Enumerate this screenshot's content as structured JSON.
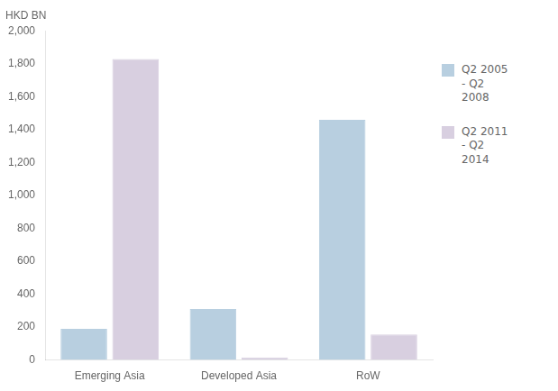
{
  "chart_data": {
    "type": "bar",
    "ylabel": "HKD BN",
    "categories": [
      "Emerging Asia",
      "Developed Asia",
      "RoW"
    ],
    "series": [
      {
        "name": "Q2 2005\n- Q2\n2008",
        "color": "#b8cfe0",
        "values": [
          190,
          310,
          1460
        ]
      },
      {
        "name": "Q2 2011\n- Q2\n2014",
        "color": "#d8cfe0",
        "values": [
          1830,
          15,
          155
        ]
      }
    ],
    "ylim": [
      0,
      2000
    ],
    "yticks": [
      0,
      200,
      400,
      600,
      800,
      {
        "value": 1000,
        "label": "1,000"
      },
      {
        "value": 1200,
        "label": "1,200"
      },
      {
        "value": 1400,
        "label": "1,400"
      },
      {
        "value": 1600,
        "label": "1,600"
      },
      {
        "value": 1800,
        "label": "1,800"
      },
      {
        "value": 2000,
        "label": "2,000"
      }
    ],
    "grid": false,
    "legend": "right"
  }
}
